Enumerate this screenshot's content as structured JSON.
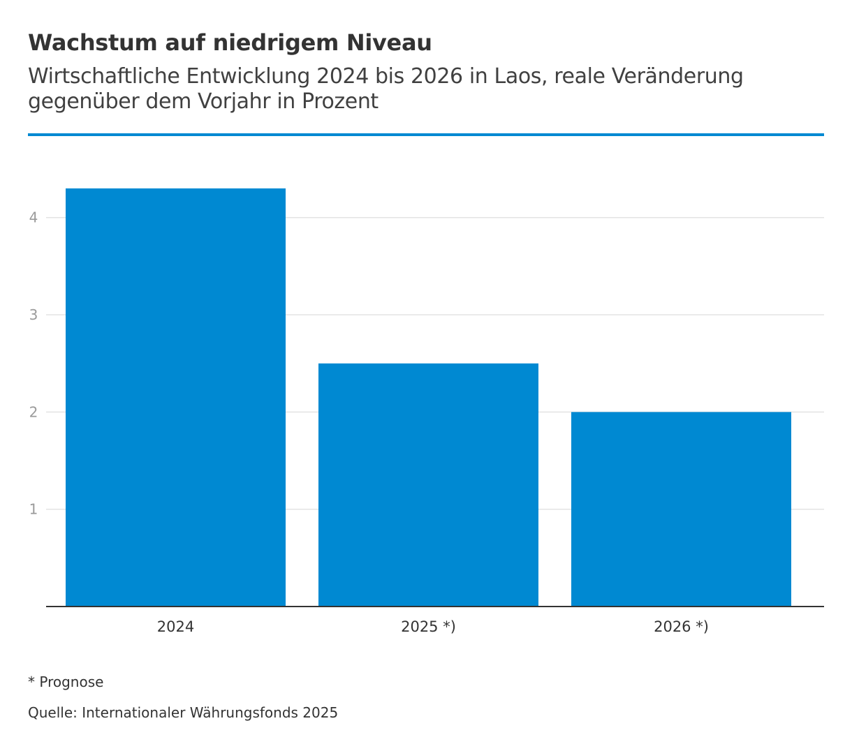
{
  "colors": {
    "accent": "#0089d2",
    "grid": "#e3e3e3",
    "axis": "#333333"
  },
  "chart_data": {
    "type": "bar",
    "title": "Wachstum auf niedrigem Niveau",
    "subtitle": "Wirtschaftliche Entwicklung 2024 bis 2026 in Laos, reale Veränderung gegenüber dem Vorjahr in Prozent",
    "categories": [
      "2024",
      "2025 *)",
      "2026 *)"
    ],
    "values": [
      4.3,
      2.5,
      2.0
    ],
    "ylim": [
      0,
      4.4
    ],
    "yticks": [
      "1",
      "2",
      "3",
      "4"
    ],
    "xlabel": "",
    "ylabel": "",
    "grid": true
  },
  "footer": {
    "note": "* Prognose",
    "source": "Quelle: Internationaler Währungsfonds 2025"
  }
}
